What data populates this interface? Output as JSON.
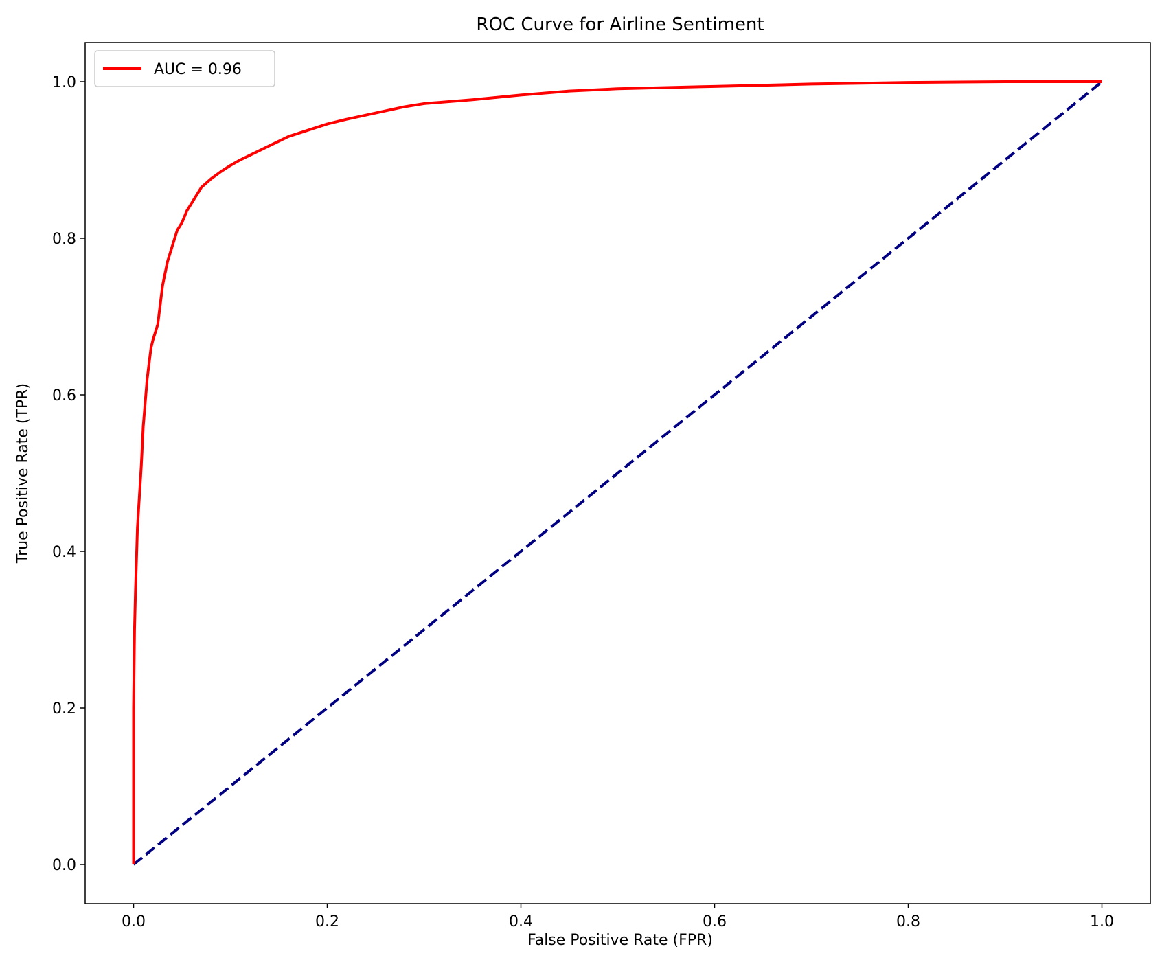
{
  "chart_data": {
    "type": "line",
    "title": "ROC Curve for Airline Sentiment",
    "xlabel": "False Positive Rate (FPR)",
    "ylabel": "True Positive Rate (TPR)",
    "xlim": [
      -0.05,
      1.05
    ],
    "ylim": [
      -0.05,
      1.05
    ],
    "xticks": [
      0.0,
      0.2,
      0.4,
      0.6,
      0.8,
      1.0
    ],
    "xtick_labels": [
      "0.0",
      "0.2",
      "0.4",
      "0.6",
      "0.8",
      "1.0"
    ],
    "yticks": [
      0.0,
      0.2,
      0.4,
      0.6,
      0.8,
      1.0
    ],
    "ytick_labels": [
      "0.0",
      "0.2",
      "0.4",
      "0.6",
      "0.8",
      "1.0"
    ],
    "grid": false,
    "legend_position": "top-left",
    "series": [
      {
        "name": "AUC = 0.96",
        "color": "#ff0000",
        "style": "solid",
        "x": [
          0,
          0,
          0.001,
          0.002,
          0.003,
          0.004,
          0.006,
          0.008,
          0.01,
          0.012,
          0.014,
          0.016,
          0.018,
          0.02,
          0.025,
          0.03,
          0.035,
          0.04,
          0.045,
          0.05,
          0.055,
          0.06,
          0.065,
          0.07,
          0.08,
          0.09,
          0.1,
          0.11,
          0.12,
          0.14,
          0.16,
          0.18,
          0.2,
          0.22,
          0.25,
          0.28,
          0.3,
          0.35,
          0.4,
          0.45,
          0.5,
          0.6,
          0.7,
          0.8,
          0.9,
          1.0
        ],
        "y": [
          0,
          0.2,
          0.3,
          0.35,
          0.39,
          0.43,
          0.47,
          0.51,
          0.56,
          0.59,
          0.62,
          0.64,
          0.66,
          0.67,
          0.69,
          0.74,
          0.77,
          0.79,
          0.81,
          0.82,
          0.835,
          0.845,
          0.855,
          0.865,
          0.876,
          0.885,
          0.893,
          0.9,
          0.906,
          0.918,
          0.93,
          0.938,
          0.946,
          0.952,
          0.96,
          0.968,
          0.972,
          0.977,
          0.983,
          0.988,
          0.991,
          0.994,
          0.997,
          0.999,
          1.0,
          1.0
        ]
      },
      {
        "name": "",
        "color": "#000080",
        "style": "dashed",
        "x": [
          0,
          1
        ],
        "y": [
          0,
          1
        ]
      }
    ]
  }
}
